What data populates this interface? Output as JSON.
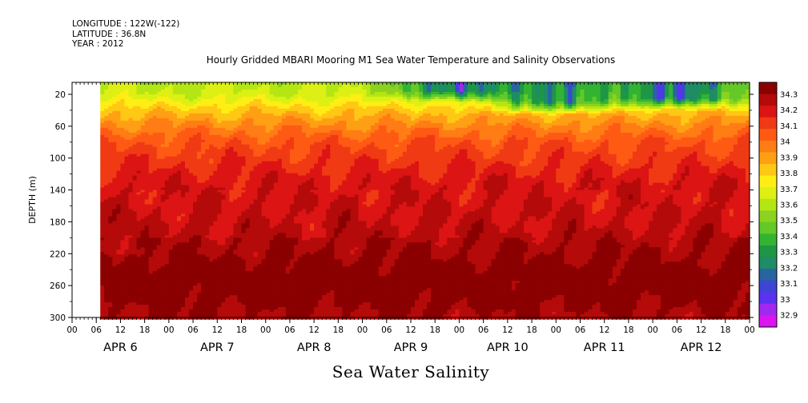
{
  "header": {
    "longitude": "LONGITUDE : 122W(-122)",
    "latitude": "LATITUDE : 36.8N",
    "year": "YEAR : 2012",
    "title": "Hourly Gridded MBARI Mooring M1 Sea Water Temperature and Salinity Observations"
  },
  "footer": {
    "variable": "Sea Water Salinity"
  },
  "chart_data": {
    "type": "heatmap",
    "title": "Hourly Gridded MBARI Mooring M1 Sea Water Temperature and Salinity Observations",
    "xlabel": "Sea Water Salinity",
    "ylabel": "DEPTH (m)",
    "x_days": [
      "APR  6",
      "APR  7",
      "APR  8",
      "APR  9",
      "APR 10",
      "APR 11",
      "APR 12"
    ],
    "x_hour_labels": [
      "00",
      "06",
      "12",
      "18"
    ],
    "x_range_hours": [
      0,
      168
    ],
    "data_start_hour": 7,
    "y_ticks": [
      20,
      60,
      100,
      140,
      180,
      220,
      260,
      300
    ],
    "y_range": [
      300,
      5
    ],
    "colorbar_levels": [
      "34.3",
      "34.2",
      "34.1",
      "34",
      "33.9",
      "33.8",
      "33.7",
      "33.6",
      "33.5",
      "33.4",
      "33.3",
      "33.2",
      "33.1",
      "33",
      "32.9"
    ],
    "colors": [
      "#8b0000",
      "#b40a0a",
      "#dc1414",
      "#f03a14",
      "#ff5a14",
      "#ff7d14",
      "#ffa014",
      "#ffc814",
      "#ffee14",
      "#dcf014",
      "#b4e614",
      "#8cd21e",
      "#64c828",
      "#32b432",
      "#1e9646",
      "#1e8c64",
      "#2864a0",
      "#3c46d2",
      "#5a32f0",
      "#a028f0",
      "#dc14f0"
    ],
    "depth_profile": [
      {
        "depth": 5,
        "salinity": 33.6
      },
      {
        "depth": 20,
        "salinity": 33.65
      },
      {
        "depth": 40,
        "salinity": 33.8
      },
      {
        "depth": 60,
        "salinity": 33.92
      },
      {
        "depth": 80,
        "salinity": 34.02
      },
      {
        "depth": 100,
        "salinity": 34.07
      },
      {
        "depth": 120,
        "salinity": 34.12
      },
      {
        "depth": 140,
        "salinity": 34.16
      },
      {
        "depth": 180,
        "salinity": 34.19
      },
      {
        "depth": 220,
        "salinity": 34.23
      },
      {
        "depth": 250,
        "salinity": 34.3
      },
      {
        "depth": 270,
        "salinity": 34.28
      },
      {
        "depth": 300,
        "salinity": 34.22
      }
    ],
    "surface_freshening": [
      {
        "hour": 96,
        "depth_min": 5,
        "depth_max": 15,
        "salinity": 33.1
      },
      {
        "hour": 120,
        "depth_min": 5,
        "depth_max": 30,
        "salinity": 33.2
      },
      {
        "hour": 150,
        "depth_min": 5,
        "depth_max": 25,
        "salinity": 33.1
      }
    ]
  }
}
